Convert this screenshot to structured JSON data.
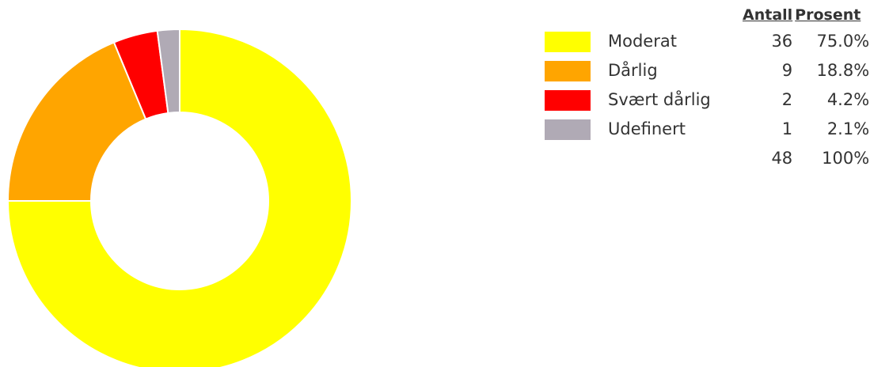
{
  "chart_data": {
    "type": "pie",
    "donut": true,
    "headers": {
      "count": "Antall",
      "percent": "Prosent"
    },
    "series": [
      {
        "name": "Moderat",
        "value": 36,
        "percent": "75.0%",
        "color": "#ffff00"
      },
      {
        "name": "Dårlig",
        "value": 9,
        "percent": "18.8%",
        "color": "#ffa500"
      },
      {
        "name": "Svært dårlig",
        "value": 2,
        "percent": "4.2%",
        "color": "#ff0000"
      },
      {
        "name": "Udefinert",
        "value": 1,
        "percent": "2.1%",
        "color": "#b0aab5"
      }
    ],
    "total": {
      "value": "48",
      "percent": "100%"
    },
    "legend_position": "right"
  }
}
